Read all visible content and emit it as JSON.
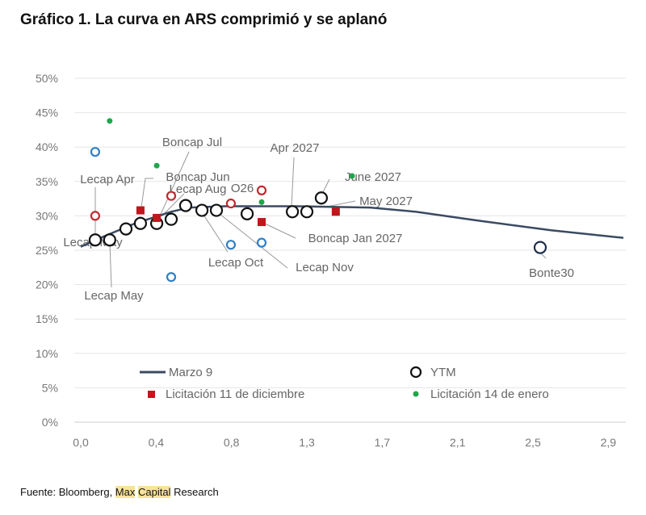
{
  "title": "Gráfico 1. La curva en ARS comprimió y se aplanó",
  "source": {
    "prefix": "Fuente: Bloomberg, ",
    "highlight1": "Max",
    "space": " ",
    "highlight2": "Capital",
    "suffix": " Research"
  },
  "chart_data": {
    "type": "scatter",
    "title": "Gráfico 1. La curva en ARS comprimió y se aplanó",
    "xlabel": "",
    "ylabel": "",
    "xlim": [
      0,
      3.0
    ],
    "ylim": [
      0,
      50
    ],
    "x_ticks": [
      {
        "value": 0.0,
        "label": "0,0"
      },
      {
        "value": 0.4167,
        "label": "0,4"
      },
      {
        "value": 0.8333,
        "label": "0,8"
      },
      {
        "value": 1.25,
        "label": "1,3"
      },
      {
        "value": 1.6667,
        "label": "1,7"
      },
      {
        "value": 2.0833,
        "label": "2,1"
      },
      {
        "value": 2.5,
        "label": "2,5"
      },
      {
        "value": 2.9167,
        "label": "2,9"
      }
    ],
    "y_ticks": [
      "0%",
      "5%",
      "10%",
      "15%",
      "20%",
      "25%",
      "30%",
      "35%",
      "40%",
      "45%",
      "50%"
    ],
    "grid": "horizontal",
    "legend_placement": "bottom-inside",
    "series": [
      {
        "name": "Marzo 9",
        "kind": "line",
        "color": "#3b4a63",
        "points": [
          [
            0.0,
            25.5
          ],
          [
            0.1,
            26.7
          ],
          [
            0.3,
            28.9
          ],
          [
            0.5,
            30.6
          ],
          [
            0.6,
            31.2
          ],
          [
            0.8,
            31.4
          ],
          [
            1.2,
            31.4
          ],
          [
            1.6,
            31.2
          ],
          [
            1.85,
            30.6
          ],
          [
            2.2,
            29.3
          ],
          [
            2.6,
            27.9
          ],
          [
            3.0,
            26.8
          ]
        ]
      },
      {
        "name": "YTM",
        "kind": "ring",
        "color": "#111111",
        "points": [
          [
            0.08,
            26.5
          ],
          [
            0.16,
            26.5
          ],
          [
            0.25,
            28.1
          ],
          [
            0.33,
            28.9
          ],
          [
            0.42,
            28.9
          ],
          [
            0.5,
            29.5
          ],
          [
            0.58,
            31.5
          ],
          [
            0.67,
            30.8
          ],
          [
            0.75,
            30.8
          ],
          [
            0.92,
            30.3
          ],
          [
            1.17,
            30.6
          ],
          [
            1.25,
            30.6
          ],
          [
            1.33,
            32.6
          ],
          [
            2.54,
            25.4
          ]
        ]
      },
      {
        "name": "",
        "kind": "ring",
        "color": "#2f7fc6",
        "points": [
          [
            0.08,
            39.3
          ],
          [
            0.5,
            21.1
          ],
          [
            0.83,
            25.8
          ],
          [
            1.0,
            26.1
          ]
        ]
      },
      {
        "name": "",
        "kind": "ring",
        "color": "#c0282d",
        "points": [
          [
            0.08,
            30.0
          ],
          [
            0.5,
            32.9
          ],
          [
            0.83,
            31.8
          ],
          [
            1.0,
            33.7
          ]
        ]
      },
      {
        "name": "Licitación 11 de diciembre",
        "kind": "square",
        "color": "#c0161c",
        "points": [
          [
            0.33,
            30.8
          ],
          [
            0.42,
            29.7
          ],
          [
            1.0,
            29.1
          ],
          [
            1.41,
            30.6
          ]
        ]
      },
      {
        "name": "Licitación 14 de enero",
        "kind": "dot",
        "color": "#1ea64b",
        "points": [
          [
            0.16,
            43.8
          ],
          [
            0.42,
            37.3
          ],
          [
            1.0,
            32.0
          ],
          [
            1.5,
            35.8
          ]
        ]
      }
    ],
    "annotations": [
      "Lecap Apr",
      "Lecap May",
      "Lecap May",
      "Boncap Jul",
      "Boncap Jun",
      "Lecap Aug",
      "O26",
      "Apr 2027",
      "June 2027",
      "May 2027",
      "Boncap Jan 2027",
      "Lecap Nov",
      "Lecap Oct",
      "Bonte30"
    ]
  }
}
